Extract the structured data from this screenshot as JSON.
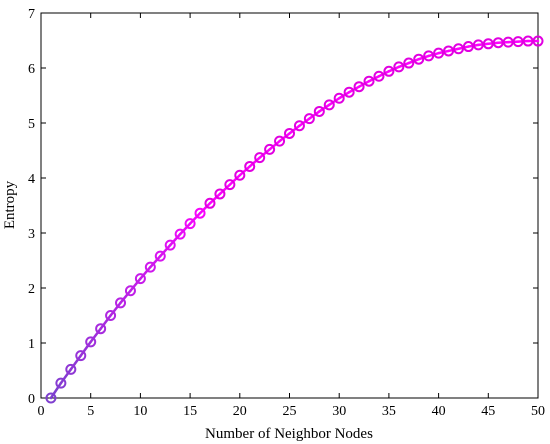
{
  "chart_data": {
    "type": "line",
    "title": "",
    "xlabel": "Number of Neighbor Nodes",
    "ylabel": "Entropy",
    "xlim": [
      0,
      50
    ],
    "ylim": [
      0,
      7
    ],
    "xticks": [
      0,
      5,
      10,
      15,
      20,
      25,
      30,
      35,
      40,
      45,
      50
    ],
    "yticks": [
      0,
      1,
      2,
      3,
      4,
      5,
      6,
      7
    ],
    "grid": false,
    "marker": "circle",
    "colors": {
      "line_start": "#7f3fcf",
      "line_end": "#ff00ff",
      "marker": "#e100e1"
    },
    "series": [
      {
        "x": [
          1,
          2,
          3,
          4,
          5,
          6,
          7,
          8,
          9,
          10,
          11,
          12,
          13,
          14,
          15,
          16,
          17,
          18,
          19,
          20,
          21,
          22,
          23,
          24,
          25,
          26,
          27,
          28,
          29,
          30,
          31,
          32,
          33,
          34,
          35,
          36,
          37,
          38,
          39,
          40,
          41,
          42,
          43,
          44,
          45,
          46,
          47,
          48,
          49,
          50
        ],
        "values": [
          0.0,
          0.27,
          0.52,
          0.77,
          1.02,
          1.26,
          1.5,
          1.73,
          1.95,
          2.17,
          2.38,
          2.58,
          2.78,
          2.98,
          3.17,
          3.36,
          3.54,
          3.71,
          3.88,
          4.05,
          4.21,
          4.37,
          4.52,
          4.67,
          4.81,
          4.95,
          5.08,
          5.21,
          5.33,
          5.45,
          5.56,
          5.66,
          5.76,
          5.85,
          5.94,
          6.02,
          6.09,
          6.16,
          6.22,
          6.27,
          6.31,
          6.35,
          6.39,
          6.42,
          6.44,
          6.46,
          6.47,
          6.48,
          6.49,
          6.49
        ]
      }
    ]
  }
}
